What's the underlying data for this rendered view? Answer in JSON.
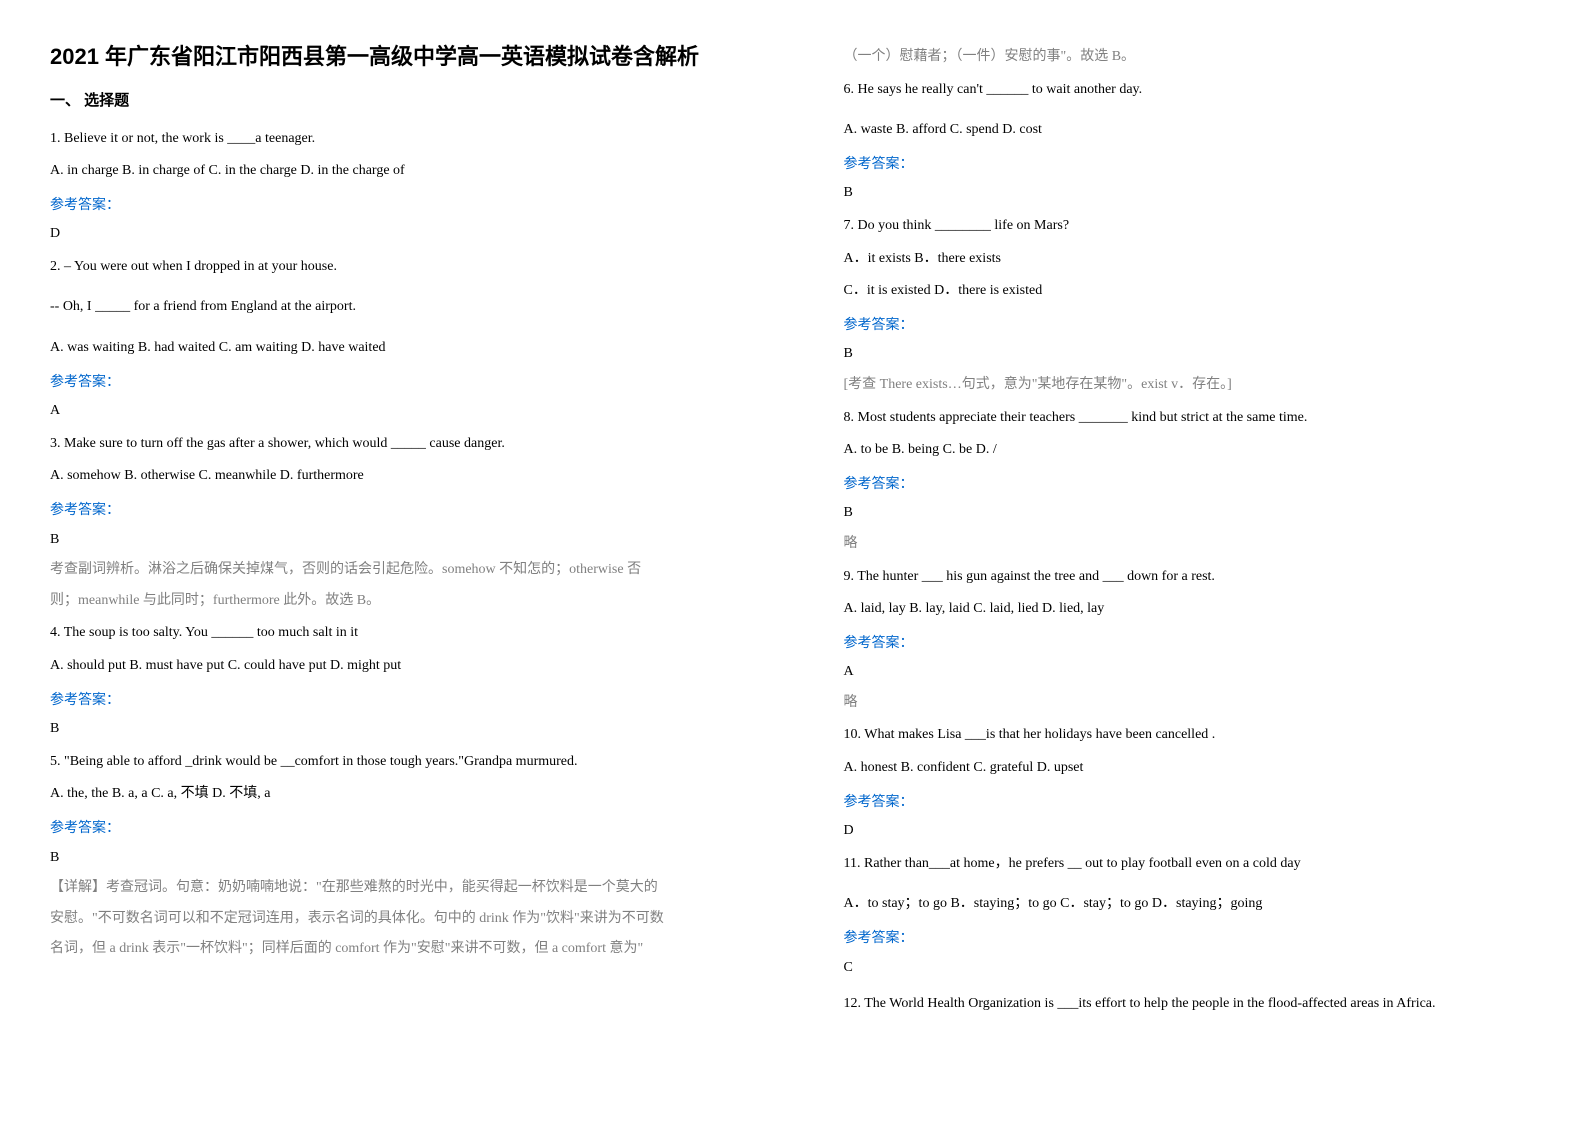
{
  "title": "2021 年广东省阳江市阳西县第一高级中学高一英语模拟试卷含解析",
  "sectionHeader": "一、 选择题",
  "answerLabel": "参考答案：",
  "left": {
    "q1": {
      "text": "1. Believe it or not, the work is ____a teenager.",
      "opts": "A. in charge      B. in charge of  C. in the charge  D. in the charge of",
      "ans": "D"
    },
    "q2": {
      "l1": "2. – You were out when I dropped in at your house.",
      "l2": "-- Oh, I _____ for a friend from England at the airport.",
      "opts": "  A. was waiting     B. had waited     C. am waiting     D. have waited",
      "ans": "A"
    },
    "q3": {
      "text": "3. Make sure to turn off the gas after a shower, which would _____ cause danger.",
      "opts": "A. somehow                            B. otherwise                  C. meanwhile                              D. furthermore",
      "ans": "B",
      "exp1": "考查副词辨析。淋浴之后确保关掉煤气，否则的话会引起危险。somehow 不知怎的；otherwise 否",
      "exp2": "则；meanwhile 与此同时；furthermore 此外。故选 B。"
    },
    "q4": {
      "text": "4. The soup is too salty. You ______ too much salt in it",
      "opts": "A. should put  B. must have put  C. could have put       D. might put",
      "ans": "B"
    },
    "q5": {
      "text": "5. \"Being able to afford _drink would be __comfort in those tough years.\"Grandpa murmured.",
      "opts": "A. the, the   B. a, a   C. a, 不填           D. 不填, a",
      "ans": "B",
      "exp1": "【详解】考查冠词。句意：奶奶喃喃地说：\"在那些难熬的时光中，能买得起一杯饮料是一个莫大的",
      "exp2": "安慰。\"不可数名词可以和不定冠词连用，表示名词的具体化。句中的 drink 作为\"饮料\"来讲为不可数",
      "exp3": "名词，但 a drink 表示\"一杯饮料\"；同样后面的 comfort 作为\"安慰\"来讲不可数，但 a comfort 意为\""
    }
  },
  "right": {
    "cont": "（一个）慰藉者；（一件）安慰的事\"。故选 B。",
    "q6": {
      "text": "6. He says he really can't ______ to wait another day.",
      "opts": "A. waste          B. afford              C. spend           D. cost",
      "ans": "B"
    },
    "q7": {
      "text": "7. Do you think ________ life on Mars?",
      "o1": "A．it exists                B．there exists",
      "o2": "C．it is existed  D．there is existed",
      "ans": "B",
      "exp": "[考查 There exists…句式，意为\"某地存在某物\"。exist v．存在。]"
    },
    "q8": {
      "text": "8. Most students appreciate their teachers _______ kind but strict at the same time.",
      "opts": "      A. to be                                 B. being            C. be                              D. /",
      "ans": "B",
      "exp": "略"
    },
    "q9": {
      "text": "9. The hunter ___ his gun against the tree and ___ down for a rest.",
      "opts": "     A. laid, lay            B. lay, laid            C. laid, lied        D. lied, lay",
      "ans": "A",
      "exp": "略"
    },
    "q10": {
      "text": "10. What makes Lisa ___is that her holidays have been  cancelled .",
      "opts": "       A. honest              B. confident       C. grateful            D. upset",
      "ans": "D"
    },
    "q11": {
      "text": "11. Rather than___at home，he prefers __ out to play football even on a cold day",
      "opts": "A．to stay；to go  B．staying；to go  C．stay；to go D．staying；going",
      "ans": "C"
    },
    "q12": {
      "text": "12. The World Health Organization is ___its effort to help the people in the flood-affected areas in Africa."
    }
  }
}
